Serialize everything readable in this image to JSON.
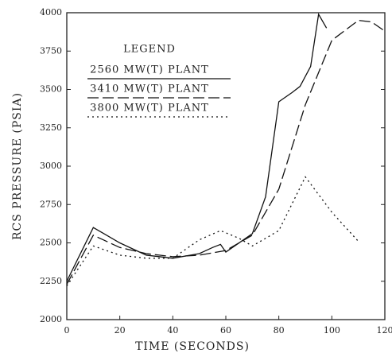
{
  "chart_data": {
    "type": "line",
    "x_label": "TIME (SECONDS)",
    "y_label": "RCS PRESSURE (PSIA)",
    "legend_title": "LEGEND",
    "xlim": [
      0,
      120
    ],
    "xticks": [
      0,
      20,
      40,
      60,
      80,
      100,
      120
    ],
    "ylim": [
      2000,
      4000
    ],
    "yticks": [
      2000,
      2250,
      2500,
      2750,
      3000,
      3250,
      3500,
      3750,
      4000
    ],
    "series": [
      {
        "name": "2560 MW(T) PLANT",
        "color": "#111111",
        "dash": "solid",
        "x": [
          0,
          10,
          20,
          30,
          40,
          50,
          55,
          58,
          60,
          70,
          75,
          80,
          85,
          88,
          92,
          95,
          98
        ],
        "values": [
          2250,
          2600,
          2500,
          2420,
          2400,
          2430,
          2470,
          2490,
          2440,
          2560,
          2800,
          3420,
          3480,
          3520,
          3650,
          3990,
          3900
        ]
      },
      {
        "name": "3410 MW(T) PLANT",
        "color": "#111111",
        "dash": "long-dash",
        "x": [
          0,
          10,
          20,
          30,
          40,
          50,
          60,
          70,
          80,
          90,
          100,
          110,
          115,
          120
        ],
        "values": [
          2230,
          2550,
          2470,
          2430,
          2410,
          2420,
          2450,
          2550,
          2850,
          3400,
          3820,
          3950,
          3940,
          3880
        ]
      },
      {
        "name": "3800 MW(T) PLANT",
        "color": "#111111",
        "dash": "dotted",
        "x": [
          0,
          10,
          20,
          30,
          40,
          50,
          58,
          65,
          70,
          80,
          90,
          100,
          110
        ],
        "values": [
          2220,
          2480,
          2420,
          2400,
          2400,
          2520,
          2580,
          2530,
          2480,
          2580,
          2930,
          2700,
          2510
        ]
      }
    ]
  }
}
